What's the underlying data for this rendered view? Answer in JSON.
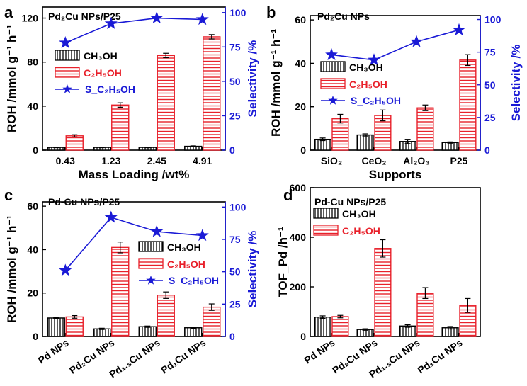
{
  "colors": {
    "ch3oh": "#000000",
    "c2h5oh": "#e8202a",
    "selectivity": "#1a1ad6",
    "axis": "#000000"
  },
  "chart_data": [
    {
      "type": "bar",
      "panel": "a",
      "title": "Pd₂Cu NPs/P25",
      "xlabel": "Mass Loading /wt%",
      "ylabel": "ROH /mmol g⁻¹ h⁻¹",
      "y2label": "Selectivity /%",
      "categories": [
        "0.43",
        "1.23",
        "2.45",
        "4.91"
      ],
      "ylim": [
        0,
        130
      ],
      "yticks": [
        "0",
        "40",
        "80",
        "120"
      ],
      "y2lim": [
        0,
        104
      ],
      "y2ticks": [
        "0",
        "25",
        "50",
        "75",
        "100"
      ],
      "series": [
        {
          "name": "CH₃OH",
          "kind": "bar",
          "values": [
            2.5,
            2.5,
            2.5,
            3.5
          ],
          "errors": [
            0.3,
            0.3,
            0.3,
            0.4
          ]
        },
        {
          "name": "C₂H₅OH",
          "kind": "bar",
          "values": [
            13,
            41,
            86,
            103
          ],
          "errors": [
            1,
            2,
            2,
            2
          ]
        },
        {
          "name": "S_C₂H₅OH",
          "kind": "line-star",
          "axis": "right",
          "values": [
            78,
            92,
            96,
            95
          ]
        }
      ]
    },
    {
      "type": "bar",
      "panel": "b",
      "title": "Pd₂Cu NPs",
      "xlabel": "Supports",
      "ylabel": "ROH /mmol g⁻¹ h⁻¹",
      "y2label": "Selectivity /%",
      "categories": [
        "SiO₂",
        "CeO₂",
        "Al₂O₃",
        "P25"
      ],
      "ylim": [
        0,
        62
      ],
      "yticks": [
        "0",
        "20",
        "40",
        "60"
      ],
      "y2lim": [
        0,
        103
      ],
      "y2ticks": [
        "0",
        "25",
        "50",
        "75",
        "100"
      ],
      "series": [
        {
          "name": "CH₃OH",
          "kind": "bar",
          "values": [
            5,
            7,
            4,
            3.5
          ],
          "errors": [
            0.6,
            0.5,
            1,
            0.3
          ]
        },
        {
          "name": "C₂H₅OH",
          "kind": "bar",
          "values": [
            14.5,
            16,
            19.5,
            41.5
          ],
          "errors": [
            2,
            2.5,
            1.3,
            2.5
          ]
        },
        {
          "name": "S_C₂H₅OH",
          "kind": "line-star",
          "axis": "right",
          "values": [
            73,
            69,
            83,
            92
          ]
        }
      ]
    },
    {
      "type": "bar",
      "panel": "c",
      "title": "Pd-Cu NPs/P25",
      "xlabel": "",
      "ylabel": "ROH /mmol g⁻¹ h⁻¹",
      "y2label": "Selectivity /%",
      "categories": [
        "Pd NPs",
        "Pd₂Cu NPs",
        "Pd₁.₅Cu NPs",
        "Pd₁Cu NPs"
      ],
      "ylim": [
        0,
        62
      ],
      "yticks": [
        "0",
        "20",
        "40",
        "60"
      ],
      "y2lim": [
        0,
        104
      ],
      "y2ticks": [
        "0",
        "25",
        "50",
        "75",
        "100"
      ],
      "series": [
        {
          "name": "CH₃OH",
          "kind": "bar",
          "values": [
            8.5,
            3.5,
            4.5,
            4
          ],
          "errors": [
            0.3,
            0.3,
            0.3,
            0.3
          ]
        },
        {
          "name": "C₂H₅OH",
          "kind": "bar",
          "values": [
            9,
            41,
            19,
            13.5
          ],
          "errors": [
            0.6,
            2.5,
            1.5,
            1.5
          ]
        },
        {
          "name": "S_C₂H₅OH",
          "kind": "line-star",
          "axis": "right",
          "values": [
            51,
            92,
            81,
            78
          ]
        }
      ]
    },
    {
      "type": "bar",
      "panel": "d",
      "title": "Pd-Cu NPs/P25",
      "xlabel": "",
      "ylabel": "TOF_Pd /h⁻¹",
      "categories": [
        "Pd NPs",
        "Pd₂Cu NPs",
        "Pd₁.₅Cu NPs",
        "Pd₁Cu NPs"
      ],
      "ylim": [
        0,
        600
      ],
      "yticks": [
        "0",
        "200",
        "400",
        "600"
      ],
      "series": [
        {
          "name": "CH₃OH",
          "kind": "bar",
          "values": [
            78,
            28,
            42,
            35
          ],
          "errors": [
            5,
            3,
            5,
            5
          ]
        },
        {
          "name": "C₂H₅OH",
          "kind": "bar",
          "values": [
            80,
            355,
            175,
            125
          ],
          "errors": [
            5,
            35,
            22,
            28
          ]
        }
      ]
    }
  ]
}
